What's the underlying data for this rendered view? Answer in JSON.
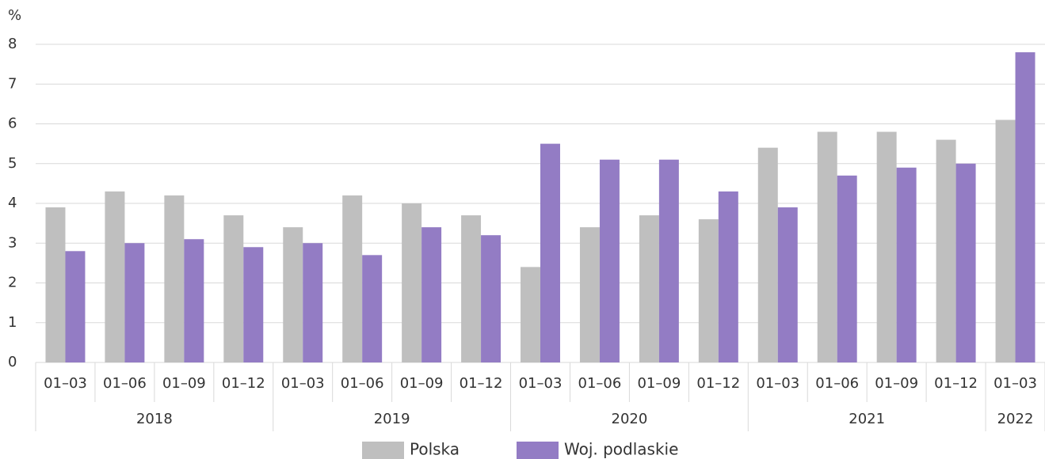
{
  "chart_data": {
    "type": "bar",
    "y_unit": "%",
    "category_groups": [
      {
        "name": "2018",
        "categories": [
          "01–03",
          "01–06",
          "01–09",
          "01–12"
        ]
      },
      {
        "name": "2019",
        "categories": [
          "01–03",
          "01–06",
          "01–09",
          "01–12"
        ]
      },
      {
        "name": "2020",
        "categories": [
          "01–03",
          "01–06",
          "01–09",
          "01–12"
        ]
      },
      {
        "name": "2021",
        "categories": [
          "01–03",
          "01–06",
          "01–09",
          "01–12"
        ]
      },
      {
        "name": "2022",
        "categories": [
          "01–03"
        ]
      }
    ],
    "series": [
      {
        "name": "Polska",
        "color": "#bfbfbf",
        "values": [
          3.9,
          4.3,
          4.2,
          3.7,
          3.4,
          4.2,
          4.0,
          3.7,
          2.4,
          3.4,
          3.7,
          3.6,
          5.4,
          5.8,
          5.8,
          5.6,
          6.1
        ]
      },
      {
        "name": "Woj. podlaskie",
        "color": "#937cc4",
        "values": [
          2.8,
          3.0,
          3.1,
          2.9,
          3.0,
          2.7,
          3.4,
          3.2,
          5.5,
          5.1,
          5.1,
          4.3,
          3.9,
          4.7,
          4.9,
          5.0,
          7.8
        ]
      }
    ],
    "ylim": [
      0,
      8
    ],
    "yticks": [
      0,
      1,
      2,
      3,
      4,
      5,
      6,
      7,
      8
    ],
    "grid": true,
    "legend": "bottom"
  }
}
